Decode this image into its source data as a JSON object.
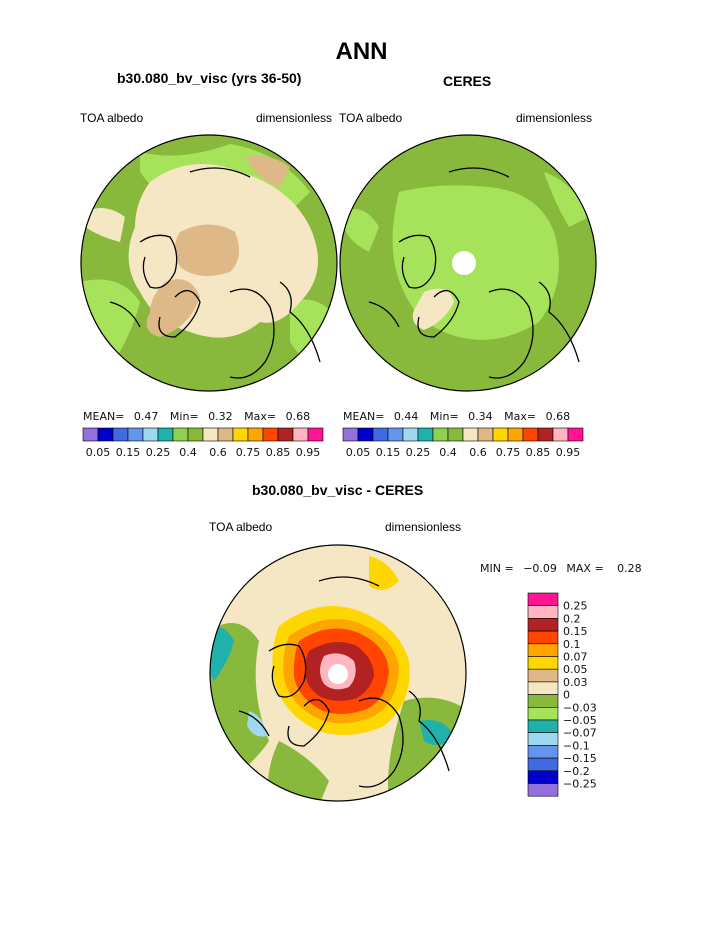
{
  "figure": {
    "title": "ANN",
    "left_panel": {
      "title": "b30.080_bv_visc (yrs 36-50)",
      "left_label": "TOA albedo",
      "right_label": "dimensionless",
      "stats": {
        "mean_label": "MEAN=",
        "mean": "0.47",
        "min_label": "Min=",
        "min": "0.32",
        "max_label": "Max=",
        "max": "0.68"
      }
    },
    "right_panel": {
      "title": "CERES",
      "left_label": "TOA albedo",
      "right_label": "dimensionless",
      "stats": {
        "mean_label": "MEAN=",
        "mean": "0.44",
        "min_label": "Min=",
        "min": "0.34",
        "max_label": "Max=",
        "max": "0.68"
      }
    },
    "diff_panel": {
      "title": "b30.080_bv_visc - CERES",
      "left_label": "TOA albedo",
      "right_label": "dimensionless",
      "stats": {
        "min_label": "MIN =",
        "min": "−0.09",
        "max_label": "MAX =",
        "max": "0.28"
      }
    }
  },
  "colorbars": {
    "albedo": {
      "colors": [
        "#9370DB",
        "#0000CD",
        "#4169E1",
        "#6495ED",
        "#A0D8EF",
        "#20B2AA",
        "#8FD14F",
        "#88B83C",
        "#F5E6C4",
        "#DEB887",
        "#FFD700",
        "#FFA500",
        "#FF4500",
        "#B22222",
        "#FFB6C1",
        "#FF1493"
      ],
      "tick_labels": [
        "0.05",
        "0.15",
        "0.25",
        "0.4",
        "0.6",
        "0.75",
        "0.85",
        "0.95"
      ]
    },
    "difference": {
      "colors": [
        "#FF1493",
        "#FFB6C1",
        "#B22222",
        "#FF4500",
        "#FFA500",
        "#FFD700",
        "#DEB887",
        "#F5E6C4",
        "#88B83C",
        "#A6E35A",
        "#20B2AA",
        "#A0D8EF",
        "#6495ED",
        "#4169E1",
        "#0000CD",
        "#9370DB"
      ],
      "tick_labels": [
        "0.25",
        "0.2",
        "0.15",
        "0.1",
        "0.07",
        "0.05",
        "0.03",
        "0",
        "−0.03",
        "−0.05",
        "−0.07",
        "−0.1",
        "−0.15",
        "−0.2",
        "−0.25"
      ]
    }
  },
  "map_colors": {
    "green": "#88B83C",
    "light_green": "#A6E35A",
    "cream": "#F5E6C4",
    "tan": "#DEB887",
    "yellow": "#FFD700",
    "orange": "#FFA500",
    "red_orange": "#FF4500",
    "dark_red": "#B22222",
    "pink": "#FFB6C1",
    "teal": "#20B2AA",
    "light_blue": "#A0D8EF"
  }
}
